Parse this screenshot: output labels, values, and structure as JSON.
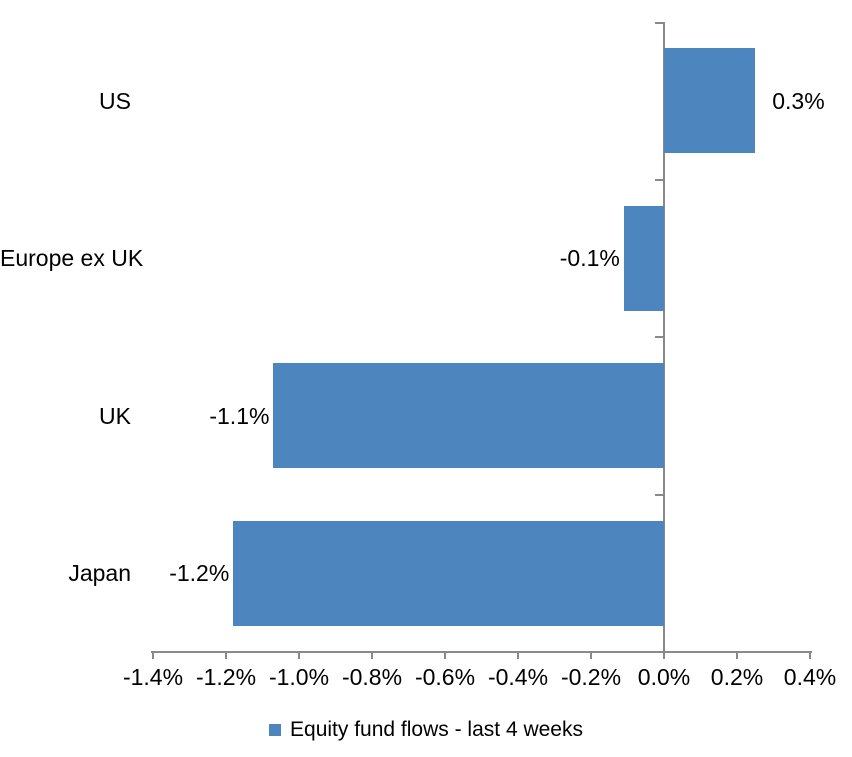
{
  "chart_data": {
    "type": "bar",
    "orientation": "horizontal",
    "title": "",
    "xlabel": "",
    "ylabel": "",
    "categories": [
      "US",
      "Europe ex UK",
      "UK",
      "Japan"
    ],
    "values": [
      0.25,
      -0.11,
      -1.07,
      -1.18
    ],
    "data_labels": [
      "0.3%",
      "-0.1%",
      "-1.1%",
      "-1.2%"
    ],
    "series": [
      {
        "name": "Equity fund flows - last 4 weeks",
        "values": [
          0.25,
          -0.11,
          -1.07,
          -1.18
        ]
      }
    ],
    "xlim": [
      -1.4,
      0.4
    ],
    "x_tick_values": [
      -1.4,
      -1.2,
      -1.0,
      -0.8,
      -0.6,
      -0.4,
      -0.2,
      0.0,
      0.2,
      0.4
    ],
    "x_ticks": [
      "-1.4%",
      "-1.2%",
      "-1.0%",
      "-0.8%",
      "-0.6%",
      "-0.4%",
      "-0.2%",
      "0.0%",
      "0.2%",
      "0.4%"
    ],
    "grid": false,
    "legend_position": "bottom",
    "unit": "percent",
    "bar_color": "#4D86BE",
    "axis_color": "#898989",
    "text_color": "#000000"
  },
  "legend": {
    "label": "Equity fund flows - last 4 weeks",
    "swatch_color": "#4D86BE"
  }
}
